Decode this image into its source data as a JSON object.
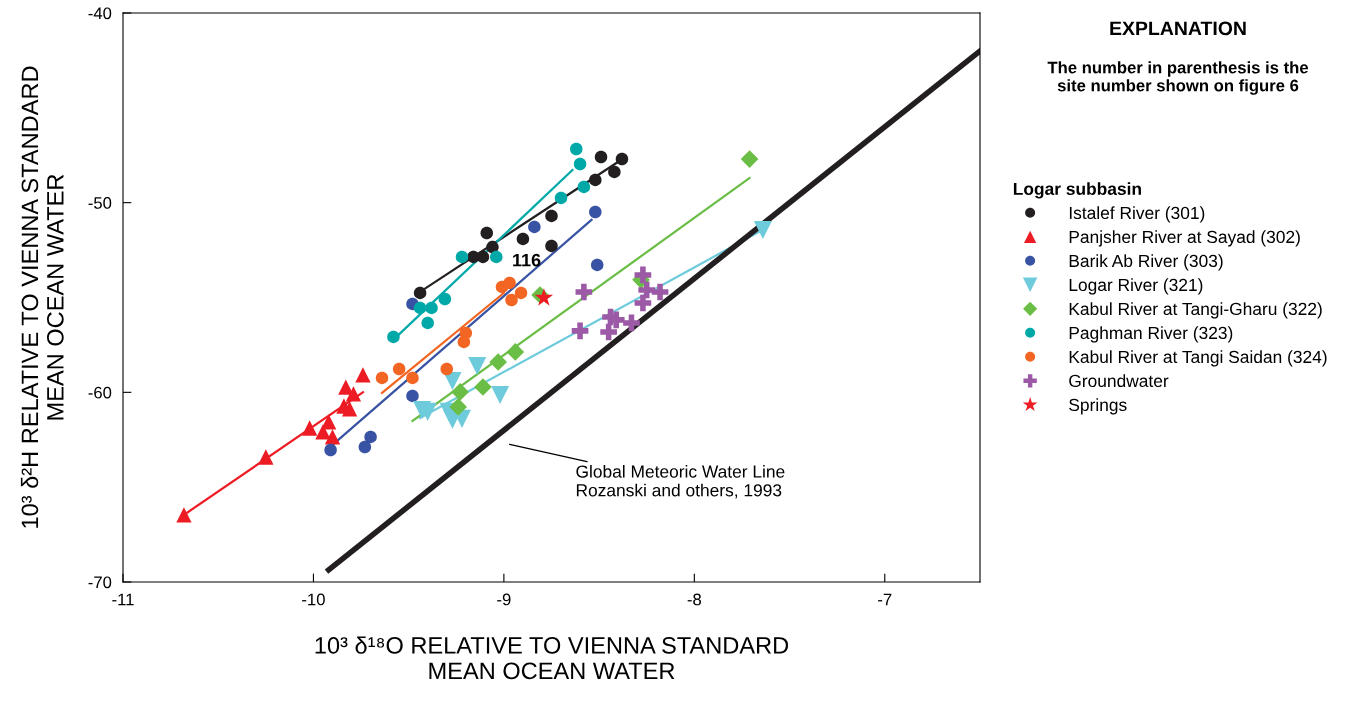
{
  "chart_data": {
    "type": "scatter",
    "xlabel": "10³ δ¹⁸O RELATIVE TO VIENNA STANDARD\nMEAN OCEAN WATER",
    "ylabel": "10³ δ²H RELATIVE TO VIENNA STANDARD\nMEAN OCEAN WATER",
    "legend_title": "Logar subbasin",
    "legend": "right",
    "grid": false,
    "xlim": [
      -11,
      -6.5
    ],
    "xticks": [
      -11,
      -10,
      -9,
      -8,
      -7
    ],
    "ylim": [
      -70,
      -40
    ],
    "yticks": [
      -70,
      -60,
      -50,
      -40
    ],
    "annotations": [
      "EXPLANATION",
      "The number in parenthesis is the\nsite number shown on figure 6",
      {
        "text": "116",
        "x": -8.79,
        "y": -55.02
      },
      "Global Meteoric Water Line\nRozanski and others, 1993"
    ],
    "series": [
      {
        "name": "Istalef River (301)",
        "color": "#231f20",
        "marker": "circle",
        "x": [
          -9.44,
          -9.09,
          -9.16,
          -9.11,
          -9.06,
          -8.9,
          -8.75,
          -8.75,
          -8.52,
          -8.49,
          -8.42,
          -8.38
        ],
        "values": [
          -54.76,
          -51.6,
          -52.86,
          -52.86,
          -52.34,
          -51.91,
          -50.7,
          -52.28,
          -48.8,
          -47.59,
          -48.38,
          -47.7
        ]
      },
      {
        "name": "Panjsher River at Sayad (302)",
        "color": "#ed1c24",
        "marker": "triangle",
        "x": [
          -10.68,
          -10.25,
          -10.02,
          -9.95,
          -9.92,
          -9.9,
          -9.84,
          -9.81,
          -9.83,
          -9.79,
          -9.74
        ],
        "values": [
          -66.46,
          -63.41,
          -61.88,
          -62.09,
          -61.56,
          -62.35,
          -60.72,
          -60.87,
          -59.72,
          -60.08,
          -59.08
        ]
      },
      {
        "name": "Barik Ab River (303)",
        "color": "#3953a4",
        "marker": "circle",
        "x": [
          -9.91,
          -9.7,
          -9.73,
          -9.48,
          -9.48,
          -8.84,
          -8.52,
          -8.51
        ],
        "values": [
          -63.04,
          -62.35,
          -62.88,
          -55.34,
          -60.19,
          -51.28,
          -50.49,
          -53.28
        ]
      },
      {
        "name": "Logar River (321)",
        "color": "#6dcbdb",
        "marker": "triangle_down",
        "x": [
          -9.43,
          -9.4,
          -9.27,
          -9.14,
          -9.02,
          -9.29,
          -9.27,
          -9.22,
          -7.64
        ],
        "values": [
          -60.93,
          -61.03,
          -59.4,
          -58.61,
          -60.14,
          -61.03,
          -61.45,
          -61.4,
          -51.44
        ]
      },
      {
        "name": "Kabul River at Tangi-Gharu (322)",
        "color": "#6abd45",
        "marker": "diamond",
        "x": [
          -9.03,
          -8.94,
          -9.23,
          -9.11,
          -9.24,
          -7.71,
          -8.28,
          -8.81
        ],
        "values": [
          -58.4,
          -57.87,
          -59.98,
          -59.72,
          -60.77,
          -47.7,
          -54.07,
          -54.87
        ]
      },
      {
        "name": "Paghman River (323)",
        "color": "#00a8a8",
        "marker": "circle",
        "x": [
          -8.62,
          -8.6,
          -8.58,
          -8.7,
          -9.04,
          -9.22,
          -9.31,
          -9.38,
          -9.44,
          -9.4,
          -9.58
        ],
        "values": [
          -47.17,
          -47.96,
          -49.17,
          -49.75,
          -52.86,
          -52.86,
          -55.08,
          -55.55,
          -55.55,
          -56.34,
          -57.08
        ]
      },
      {
        "name": "Kabul River at Tangi Saidan (324)",
        "color": "#f26522",
        "marker": "circle",
        "x": [
          -9.64,
          -9.55,
          -9.48,
          -9.3,
          -9.2,
          -9.21,
          -9.01,
          -8.97,
          -8.91,
          -8.96
        ],
        "values": [
          -59.24,
          -58.77,
          -59.24,
          -58.77,
          -56.87,
          -57.34,
          -54.44,
          -54.23,
          -54.76,
          -55.13
        ]
      },
      {
        "name": "Groundwater",
        "color": "#9b59a6",
        "marker": "cross",
        "x": [
          -8.58,
          -8.6,
          -8.45,
          -8.44,
          -8.41,
          -8.33,
          -8.27,
          -8.25,
          -8.18,
          -8.27
        ],
        "values": [
          -54.71,
          -56.76,
          -56.82,
          -56.03,
          -56.18,
          -56.34,
          -53.81,
          -54.6,
          -54.71,
          -55.29
        ]
      },
      {
        "name": "Springs",
        "color": "#ed1c24",
        "marker": "star",
        "x": [
          -8.79
        ],
        "values": [
          -55.02
        ]
      },
      {
        "type": "line",
        "color": "#231f20",
        "x": [
          -9.44,
          -8.37
        ],
        "values": [
          -54.7,
          -47.65
        ]
      },
      {
        "type": "line",
        "color": "#ed1c24",
        "x": [
          -10.68,
          -9.74
        ],
        "values": [
          -66.46,
          -60.0
        ]
      },
      {
        "type": "line",
        "color": "#3953a4",
        "x": [
          -9.9,
          -8.54
        ],
        "values": [
          -62.77,
          -50.91
        ]
      },
      {
        "type": "line",
        "color": "#6dcbdb",
        "x": [
          -9.44,
          -7.66
        ],
        "values": [
          -61.35,
          -51.54
        ]
      },
      {
        "type": "line",
        "color": "#6abd45",
        "x": [
          -9.48,
          -7.71
        ],
        "values": [
          -61.51,
          -48.7
        ]
      },
      {
        "type": "line",
        "color": "#00a8a8",
        "x": [
          -9.57,
          -8.64
        ],
        "values": [
          -57.13,
          -48.28
        ]
      },
      {
        "type": "line",
        "color": "#f26522",
        "x": [
          -9.64,
          -9.0
        ],
        "values": [
          -60.03,
          -54.76
        ]
      },
      {
        "type": "line",
        "color": "#231f20",
        "x": [
          -9.92,
          -6.5
        ],
        "values": [
          -69.36,
          -42.0
        ]
      }
    ]
  }
}
